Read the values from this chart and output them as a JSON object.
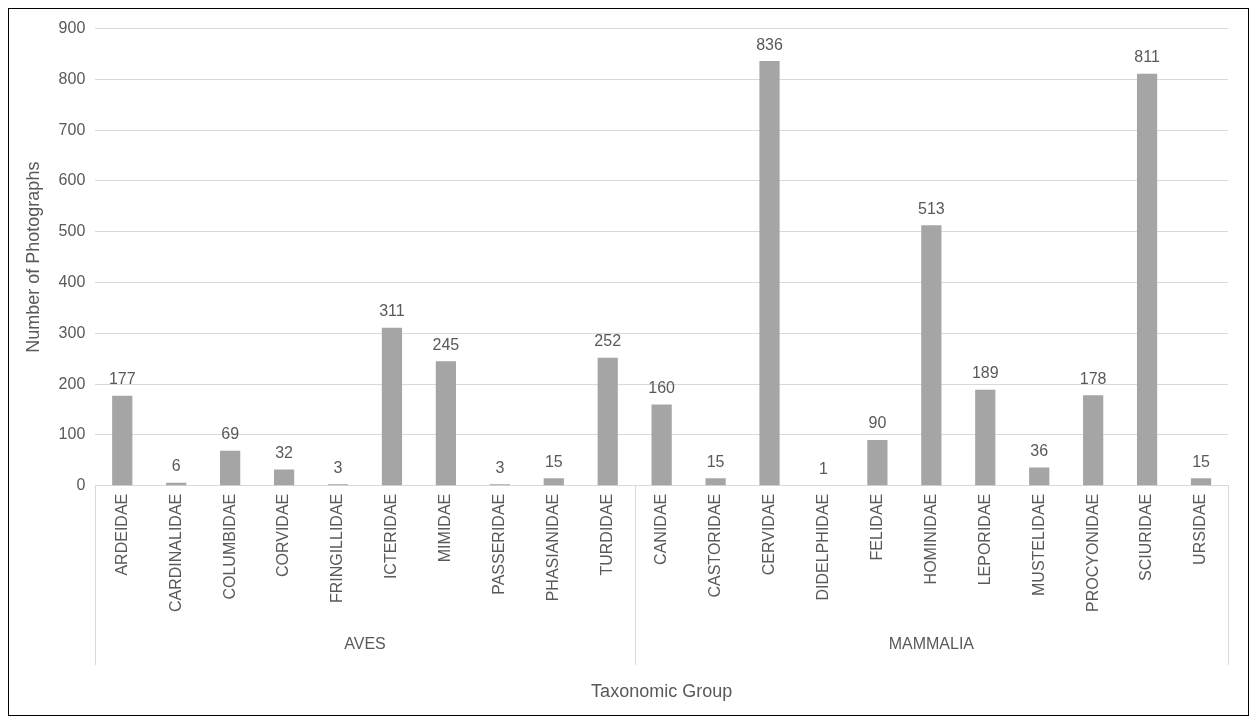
{
  "chart_data": {
    "type": "bar",
    "xlabel": "Taxonomic Group",
    "ylabel": "Number of Photographs",
    "categories": [
      "ARDEIDAE",
      "CARDINALIDAE",
      "COLUMBIDAE",
      "CORVIDAE",
      "FRINGILLIDAE",
      "ICTERIDAE",
      "MIMIDAE",
      "PASSERIDAE",
      "PHASIANIDAE",
      "TURDIDAE",
      "CANIDAE",
      "CASTORIDAE",
      "CERVIDAE",
      "DIDELPHIDAE",
      "FELIDAE",
      "HOMINIDAE",
      "LEPORIDAE",
      "MUSTELIDAE",
      "PROCYONIDAE",
      "SCIURIDAE",
      "URSIDAE"
    ],
    "values": [
      177,
      6,
      69,
      32,
      3,
      311,
      245,
      3,
      15,
      252,
      160,
      15,
      836,
      1,
      90,
      513,
      189,
      36,
      178,
      811,
      15
    ],
    "color": "#a5a5a5",
    "ylim": [
      0,
      900
    ],
    "yticks": [
      0,
      100,
      200,
      300,
      400,
      500,
      600,
      700,
      800,
      900
    ],
    "grid": "y",
    "data_labels": true,
    "annotations": [
      "AVES",
      "MAMMALIA"
    ]
  }
}
